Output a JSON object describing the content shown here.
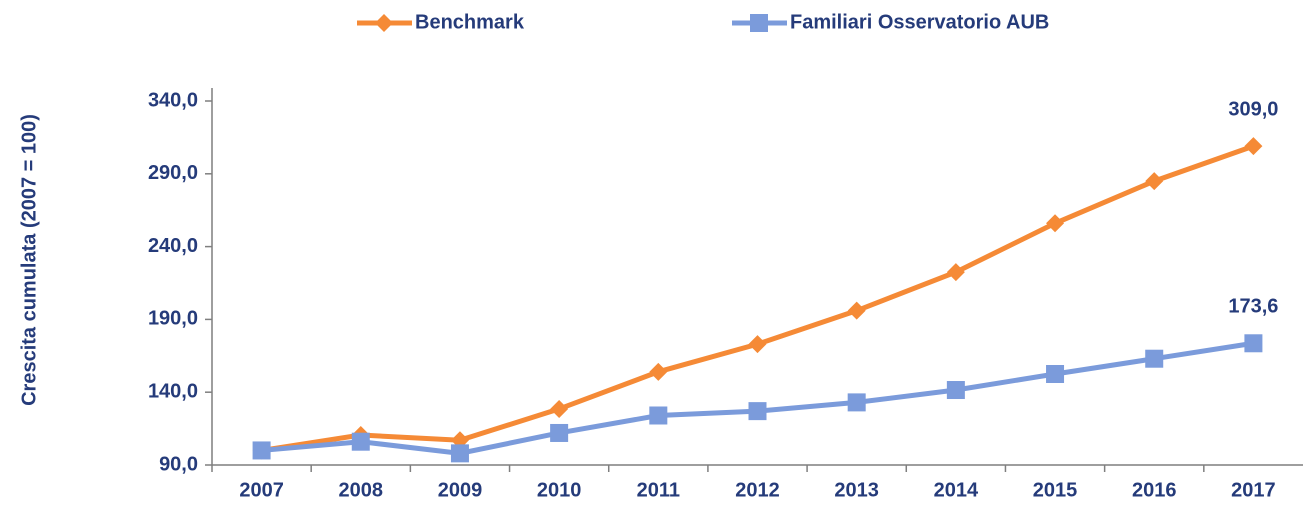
{
  "chart_data": {
    "type": "line",
    "y_label": "Crescita cumulata (2007 = 100)",
    "categories": [
      "2007",
      "2008",
      "2009",
      "2010",
      "2011",
      "2012",
      "2013",
      "2014",
      "2015",
      "2016",
      "2017"
    ],
    "series": [
      {
        "name": "Benchmark",
        "color": "#f58a36",
        "marker": "diamond",
        "values": [
          100,
          110.6,
          107,
          128.5,
          154,
          173,
          196,
          222.5,
          256,
          285,
          309
        ],
        "value_labels": [
          null,
          null,
          null,
          null,
          null,
          null,
          null,
          null,
          null,
          null,
          "309,0"
        ]
      },
      {
        "name": "Familiari Osservatorio AUB",
        "color": "#7b9bdb",
        "marker": "square",
        "values": [
          100,
          106,
          98,
          112,
          124,
          127,
          133,
          141.5,
          152.5,
          163,
          173.6
        ],
        "value_labels": [
          null,
          null,
          null,
          null,
          null,
          null,
          null,
          null,
          null,
          null,
          "173,6"
        ]
      }
    ],
    "ylim": [
      90,
      340
    ],
    "yticks": [
      {
        "value": 90,
        "label": "90,0"
      },
      {
        "value": 140,
        "label": "140,0"
      },
      {
        "value": 190,
        "label": "190,0"
      },
      {
        "value": 240,
        "label": "240,0"
      },
      {
        "value": 290,
        "label": "290,0"
      },
      {
        "value": 340,
        "label": "340,0"
      }
    ],
    "grid": false,
    "legend": "top"
  }
}
